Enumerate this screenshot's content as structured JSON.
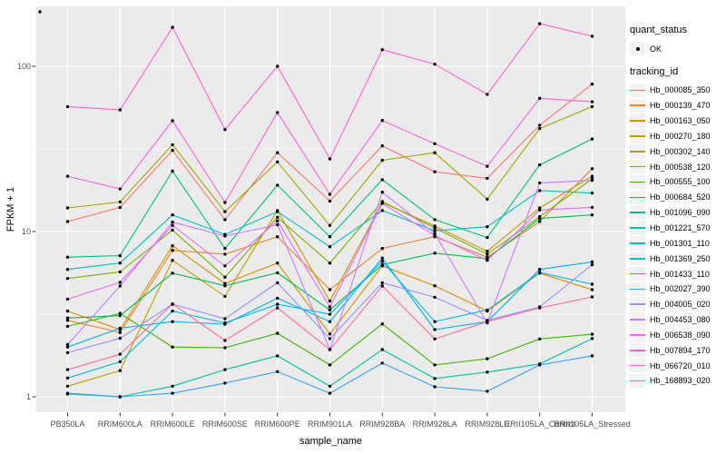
{
  "figure": {
    "background": "#FFFFFF",
    "panel_background": "#EBEBEB",
    "grid_color": "#FFFFFF",
    "tick_color": "#333333",
    "tick_label_color": "#4D4D4D",
    "axis_title_color": "#000000",
    "legend_key_background": "#F2F2F2",
    "point_color": "#000000"
  },
  "chart_data": {
    "type": "line",
    "title": "",
    "xlabel": "sample_name",
    "ylabel": "FPKM + 1",
    "y_scale": "log10",
    "y_ticks": [
      1,
      10,
      100
    ],
    "y_minor_ticks": [
      3.1623,
      31.623
    ],
    "ylim": [
      0.81,
      230
    ],
    "grid": true,
    "legend_position": "right",
    "categories": [
      "PB350LA",
      "RRIM600LA",
      "RRIM600LE",
      "RRIM600SE",
      "RRIM600PE",
      "RRIM901LA",
      "RRIM928BA",
      "RRIM928LA",
      "RRIM928LE",
      "RRII105LA_Control",
      "RRII105LA_Stressed"
    ],
    "series": [
      {
        "name": "Hb_000085_350",
        "color": "#F8766D",
        "values": [
          11.5,
          14,
          31,
          11.8,
          30,
          15.3,
          33,
          23,
          21,
          44,
          78
        ]
      },
      {
        "name": "Hb_000139_470",
        "color": "#EA8331",
        "values": [
          2.9,
          2.45,
          7.7,
          7.3,
          9.3,
          4.45,
          7.9,
          9.3,
          7.0,
          11.5,
          24
        ]
      },
      {
        "name": "Hb_000163_050",
        "color": "#D89000",
        "values": [
          3.3,
          2.55,
          8.2,
          4.85,
          6.45,
          2.4,
          6.2,
          4.7,
          3.3,
          5.6,
          4.45
        ]
      },
      {
        "name": "Hb_000270_180",
        "color": "#C09B00",
        "values": [
          1.16,
          1.44,
          6.7,
          4.05,
          13.4,
          3.8,
          15,
          10.8,
          7.6,
          13.9,
          21.6
        ]
      },
      {
        "name": "Hb_000302_140",
        "color": "#A3A500",
        "values": [
          13.9,
          15.1,
          33.5,
          13.2,
          26.4,
          10.9,
          27,
          30,
          15.7,
          42,
          57
        ]
      },
      {
        "name": "Hb_000538_120",
        "color": "#7CAE00",
        "values": [
          5.2,
          5.7,
          10.2,
          5.3,
          12.2,
          6.45,
          15.2,
          10.5,
          7.3,
          12.3,
          20.8
        ]
      },
      {
        "name": "Hb_000555_100",
        "color": "#39B600",
        "values": [
          2.67,
          3.2,
          2.0,
          1.98,
          2.42,
          1.56,
          2.76,
          1.56,
          1.7,
          2.24,
          2.39
        ]
      },
      {
        "name": "Hb_000684_520",
        "color": "#00BB4E",
        "values": [
          3.0,
          3.1,
          5.6,
          4.7,
          5.63,
          3.35,
          6.3,
          7.4,
          6.85,
          12.0,
          12.6
        ]
      },
      {
        "name": "Hb_001096_090",
        "color": "#00BF7D",
        "values": [
          7.0,
          7.15,
          23.2,
          7.9,
          19.1,
          9.3,
          20.6,
          11.8,
          9.2,
          25.3,
          36.3
        ]
      },
      {
        "name": "Hb_001221_570",
        "color": "#00C1A3",
        "values": [
          1.05,
          1.0,
          1.16,
          1.46,
          1.77,
          1.16,
          1.93,
          1.29,
          1.41,
          1.58,
          2.25
        ]
      },
      {
        "name": "Hb_001301_110",
        "color": "#00BFC4",
        "values": [
          5.9,
          6.45,
          12.6,
          9.6,
          13.2,
          8.1,
          13.4,
          10.1,
          10.7,
          17.7,
          17.1
        ]
      },
      {
        "name": "Hb_001369_250",
        "color": "#00BAE0",
        "values": [
          1.3,
          1.63,
          3.3,
          2.8,
          3.63,
          3.16,
          6.6,
          2.85,
          3.35,
          5.65,
          4.8
        ]
      },
      {
        "name": "Hb_001433_110",
        "color": "#00B0F6",
        "values": [
          2.0,
          2.6,
          2.85,
          2.75,
          3.95,
          2.85,
          6.9,
          2.55,
          2.85,
          5.9,
          6.55
        ]
      },
      {
        "name": "Hb_002027_390",
        "color": "#35A2FF",
        "values": [
          1.04,
          1.0,
          1.05,
          1.21,
          1.42,
          1.05,
          1.6,
          1.15,
          1.08,
          1.56,
          1.77
        ]
      },
      {
        "name": "Hb_004005_020",
        "color": "#9590FF",
        "values": [
          1.85,
          2.26,
          3.63,
          2.97,
          4.9,
          2.25,
          4.9,
          4.0,
          2.9,
          3.5,
          6.3
        ]
      },
      {
        "name": "Hb_004453_080",
        "color": "#C77CFF",
        "values": [
          2.07,
          4.68,
          11.4,
          9.4,
          11.0,
          1.93,
          17.3,
          9.7,
          2.8,
          19.7,
          20.4
        ]
      },
      {
        "name": "Hb_006538_090",
        "color": "#E76BF3",
        "values": [
          3.9,
          4.93,
          10.9,
          6.2,
          11.6,
          3.5,
          14.8,
          9.45,
          6.7,
          13.5,
          14.0
        ]
      },
      {
        "name": "Hb_007894_170",
        "color": "#FA62DB",
        "values": [
          21.6,
          18.1,
          46.8,
          15.0,
          52.5,
          16.8,
          47,
          34,
          24.8,
          64,
          61
        ]
      },
      {
        "name": "Hb_066720_010",
        "color": "#FF61CC",
        "values": [
          57,
          54.5,
          172,
          41.4,
          100,
          27.5,
          126,
          103,
          67.6,
          181,
          152
        ]
      },
      {
        "name": "Hb_168893_020",
        "color": "#FF6A98",
        "values": [
          1.46,
          1.81,
          3.65,
          2.19,
          3.45,
          1.93,
          4.68,
          2.24,
          2.85,
          3.45,
          4.02
        ]
      }
    ],
    "legend": {
      "quant_status_title": "quant_status",
      "quant_status_items": [
        {
          "label": "OK"
        }
      ],
      "tracking_id_title": "tracking_id"
    }
  }
}
